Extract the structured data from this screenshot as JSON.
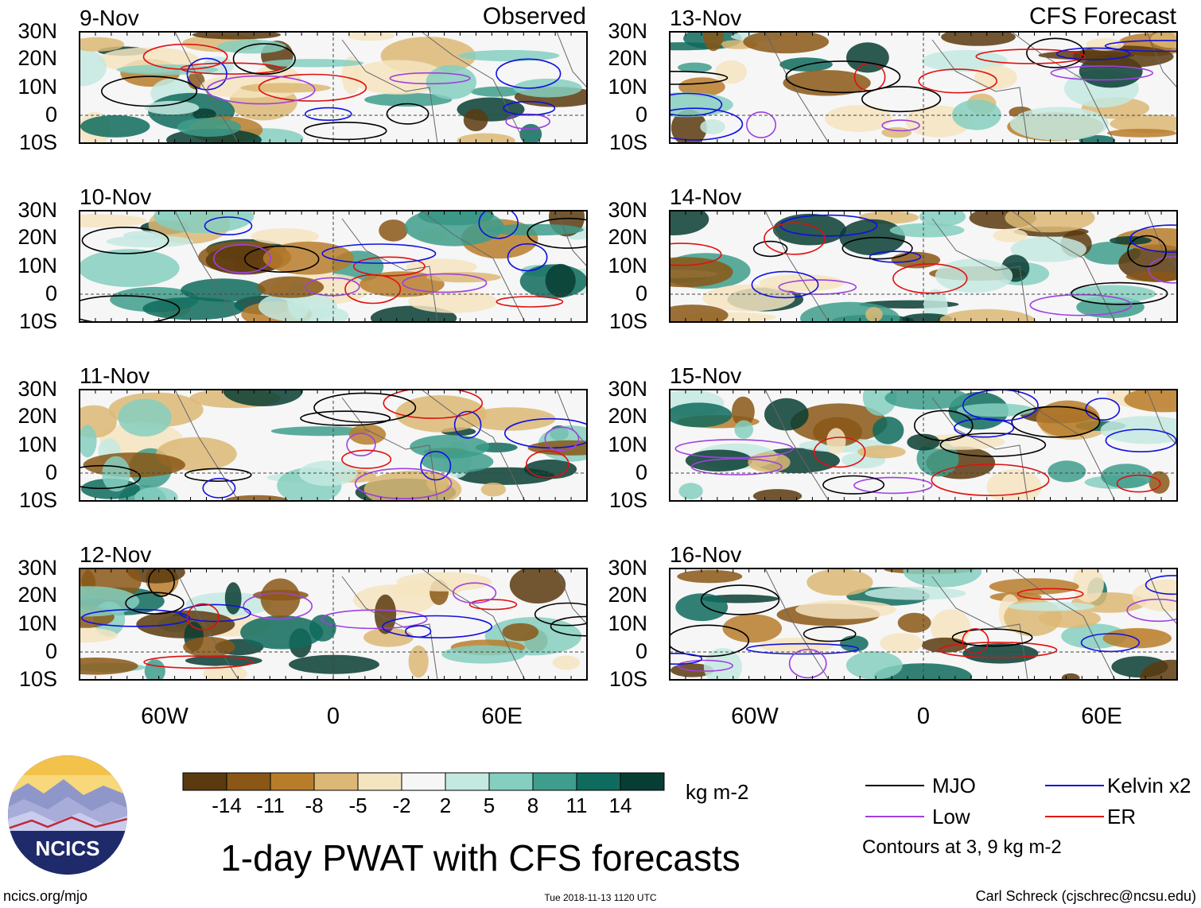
{
  "title": "1-day PWAT with CFS forecasts",
  "observed_label": "Observed",
  "forecast_label": "CFS Forecast",
  "panels_left": [
    {
      "date": "9-Nov"
    },
    {
      "date": "10-Nov"
    },
    {
      "date": "11-Nov"
    },
    {
      "date": "12-Nov"
    }
  ],
  "panels_right": [
    {
      "date": "13-Nov"
    },
    {
      "date": "14-Nov"
    },
    {
      "date": "15-Nov"
    },
    {
      "date": "16-Nov"
    }
  ],
  "lat_labels": [
    "30N",
    "20N",
    "10N",
    "0",
    "10S"
  ],
  "lon_labels": [
    "60W",
    "0",
    "60E"
  ],
  "colorbar": {
    "unit": "kg m-2",
    "ticks": [
      "-14",
      "-11",
      "-8",
      "-5",
      "-2",
      "2",
      "5",
      "8",
      "11",
      "14"
    ],
    "colors": [
      "#5a3a0e",
      "#8a5716",
      "#b87d2b",
      "#dcb876",
      "#f4e4c0",
      "#f6f6f6",
      "#c4e9e0",
      "#85cfc0",
      "#3e9d8c",
      "#0f6b5d",
      "#083d33"
    ]
  },
  "legend": {
    "items": [
      {
        "label": "MJO",
        "color": "#000000"
      },
      {
        "label": "Kelvin x2",
        "color": "#1010e0"
      },
      {
        "label": "Low",
        "color": "#a040e0"
      },
      {
        "label": "ER",
        "color": "#e01010"
      }
    ],
    "note": "Contours at 3, 9 kg m-2"
  },
  "logo_text": "NCICS",
  "footer": {
    "left": "ncics.org/mjo",
    "center": "Tue 2018-11-13 1120 UTC",
    "right": "Carl Schreck (cjschrec@ncsu.edu)"
  }
}
